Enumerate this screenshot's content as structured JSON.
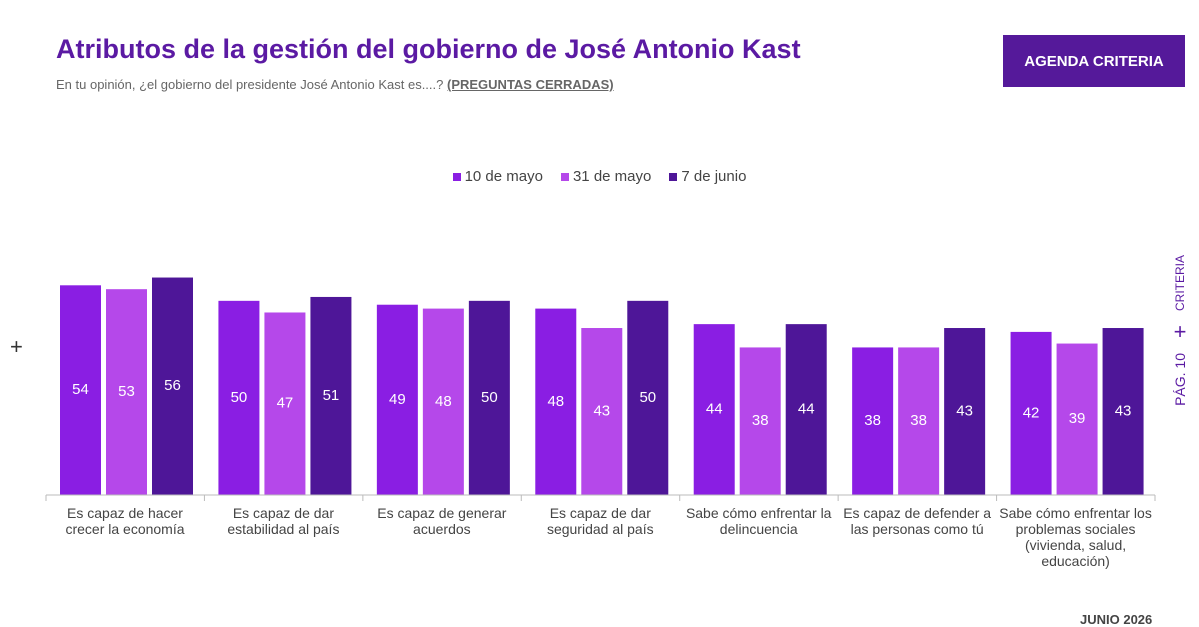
{
  "chart_data": {
    "type": "bar",
    "title": "Atributos de la gestión del gobierno de José Antonio Kast",
    "subtitle": "En tu opinión, ¿el gobierno del presidente José Antonio Kast es....?",
    "subtitle_note": "(PREGUNTAS CERRADAS)",
    "categories": [
      "Es capaz de hacer crecer la economía",
      "Es capaz de dar estabilidad al país",
      "Es capaz de generar acuerdos",
      "Es capaz de dar seguridad al país",
      "Sabe cómo enfrentar la delincuencia",
      "Es capaz de defender a las personas como tú",
      "Sabe cómo enfrentar los problemas sociales (vivienda, salud, educación)"
    ],
    "series": [
      {
        "name": "10 de mayo",
        "color": "#8a1ee3",
        "values": [
          54,
          50,
          49,
          48,
          44,
          38,
          42
        ]
      },
      {
        "name": "31 de mayo",
        "color": "#b548ea",
        "values": [
          53,
          47,
          48,
          43,
          38,
          38,
          39
        ]
      },
      {
        "name": "7 de junio",
        "color": "#4e1698",
        "values": [
          56,
          51,
          50,
          50,
          44,
          43,
          43
        ]
      }
    ],
    "ylim": [
      0,
      60
    ]
  },
  "brand": "AGENDA CRITERIA",
  "side_label": "CRITERIA",
  "page": "PÁG. 10",
  "date": "JUNIO 2026"
}
